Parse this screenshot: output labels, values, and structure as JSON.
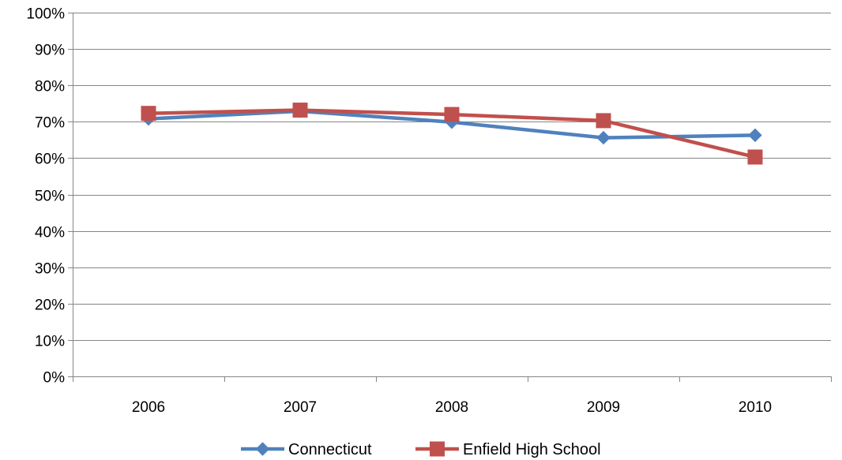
{
  "chart_data": {
    "type": "line",
    "categories": [
      "2006",
      "2007",
      "2008",
      "2009",
      "2010"
    ],
    "series": [
      {
        "name": "Connecticut",
        "values": [
          70.8,
          72.9,
          69.9,
          65.6,
          66.3
        ],
        "color": "#4F81BD",
        "marker": "diamond"
      },
      {
        "name": "Enfield High School",
        "values": [
          72.3,
          73.2,
          72.0,
          70.3,
          60.3
        ],
        "color": "#C0504D",
        "marker": "square"
      }
    ],
    "ylim": [
      0,
      100
    ],
    "yticks": [
      "0%",
      "10%",
      "20%",
      "30%",
      "40%",
      "50%",
      "60%",
      "70%",
      "80%",
      "90%",
      "100%"
    ],
    "grid": true,
    "legend": "bottom"
  }
}
